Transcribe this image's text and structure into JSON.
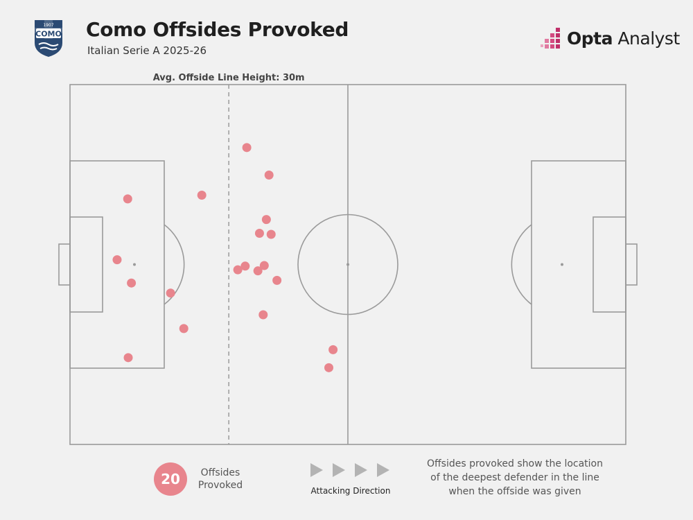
{
  "header": {
    "title": "Como Offsides Provoked",
    "subtitle": "Italian Serie A 2025-26",
    "crest_year": "1907",
    "crest_name": "COMO"
  },
  "brand": {
    "bold": "Opta",
    "light": "Analyst"
  },
  "chart_data": {
    "type": "scatter",
    "title": "Como Offsides Provoked",
    "subtitle": "Italian Serie A 2025-26",
    "pitch_length_m": 105,
    "pitch_width_m": 68,
    "avg_line_label": "Avg. Offside Line Height: 30m",
    "avg_line_x": 30,
    "marker_color": "#e8858d",
    "points": [
      {
        "x": 33.4,
        "y": 56.1
      },
      {
        "x": 37.6,
        "y": 50.9
      },
      {
        "x": 24.9,
        "y": 47.1
      },
      {
        "x": 10.9,
        "y": 46.4
      },
      {
        "x": 37.1,
        "y": 42.5
      },
      {
        "x": 35.8,
        "y": 39.9
      },
      {
        "x": 38.0,
        "y": 39.7
      },
      {
        "x": 8.9,
        "y": 34.9
      },
      {
        "x": 36.7,
        "y": 33.8
      },
      {
        "x": 33.1,
        "y": 33.7
      },
      {
        "x": 31.7,
        "y": 33.0
      },
      {
        "x": 35.5,
        "y": 32.8
      },
      {
        "x": 39.1,
        "y": 31.0
      },
      {
        "x": 11.6,
        "y": 30.5
      },
      {
        "x": 19.0,
        "y": 28.6
      },
      {
        "x": 36.5,
        "y": 24.5
      },
      {
        "x": 21.5,
        "y": 21.9
      },
      {
        "x": 49.7,
        "y": 17.9
      },
      {
        "x": 11.0,
        "y": 16.4
      },
      {
        "x": 48.9,
        "y": 14.5
      }
    ]
  },
  "legend": {
    "count": "20",
    "label": "Offsides Provoked",
    "attack_label": "Attacking Direction",
    "note": "Offsides provoked show the location of the deepest defender in the line when the offside was given"
  },
  "colors": {
    "marker": "#e8858d",
    "pitch_line": "#9a9a9a",
    "crest": "#2b4a73",
    "brand_accent": "#c0306a"
  }
}
